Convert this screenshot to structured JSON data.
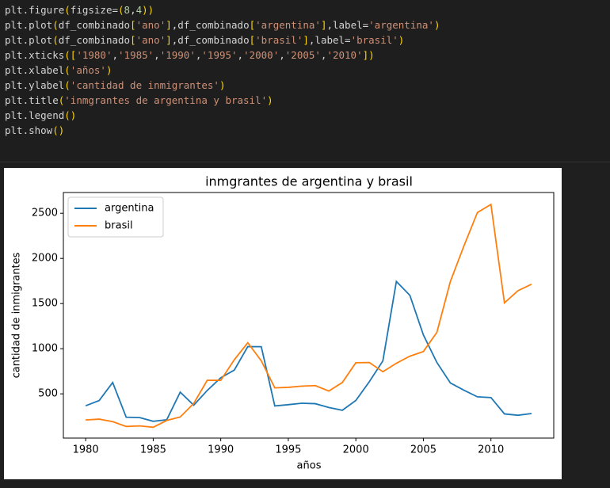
{
  "code": {
    "lines": [
      "plt.figure(figsize=(8,4))",
      "plt.plot(df_combinado['ano'],df_combinado['argentina'],label='argentina')",
      "plt.plot(df_combinado['ano'],df_combinado['brasil'],label='brasil')",
      "plt.xticks(['1980','1985','1990','1995','2000','2005','2010'])",
      "plt.xlabel('años')",
      "plt.ylabel('cantidad de inmigrantes')",
      "plt.title('inmgrantes de argentina y brasil')",
      "plt.legend()",
      "plt.show()"
    ]
  },
  "chart_data": {
    "type": "line",
    "title": "inmgrantes de argentina y brasil",
    "x_label": "años",
    "y_label": "cantidad de inmigrantes",
    "x": [
      1980,
      1981,
      1982,
      1983,
      1984,
      1985,
      1986,
      1987,
      1988,
      1989,
      1990,
      1991,
      1992,
      1993,
      1994,
      1995,
      1996,
      1997,
      1998,
      1999,
      2000,
      2001,
      2002,
      2003,
      2004,
      2005,
      2006,
      2007,
      2008,
      2009,
      2010,
      2011,
      2012,
      2013
    ],
    "series": [
      {
        "name": "argentina",
        "color": "#1f77b4",
        "values": [
          368,
          426,
          626,
          241,
          237,
          196,
          213,
          519,
          374,
          538,
          678,
          763,
          1023,
          1022,
          366,
          380,
          396,
          391,
          349,
          318,
          427,
          635,
          865,
          1745,
          1591,
          1153,
          847,
          620,
          540,
          467,
          459,
          278,
          263,
          282
        ]
      },
      {
        "name": "brasil",
        "color": "#ff7f0e",
        "values": [
          211,
          220,
          192,
          139,
          145,
          130,
          205,
          244,
          394,
          650,
          650,
          877,
          1066,
          866,
          566,
          572,
          586,
          591,
          531,
          626,
          845,
          847,
          745,
          839,
          917,
          969,
          1181,
          1746,
          2138,
          2509,
          2598,
          1508,
          1642,
          1714
        ]
      }
    ],
    "xlim": [
      1978.35,
      2014.65
    ],
    "xticks": [
      1980,
      1985,
      1990,
      1995,
      2000,
      2005,
      2010
    ],
    "ylim": [
      10,
      2730
    ],
    "yticks": [
      500,
      1000,
      1500,
      2000,
      2500
    ],
    "legend": "upper left"
  }
}
